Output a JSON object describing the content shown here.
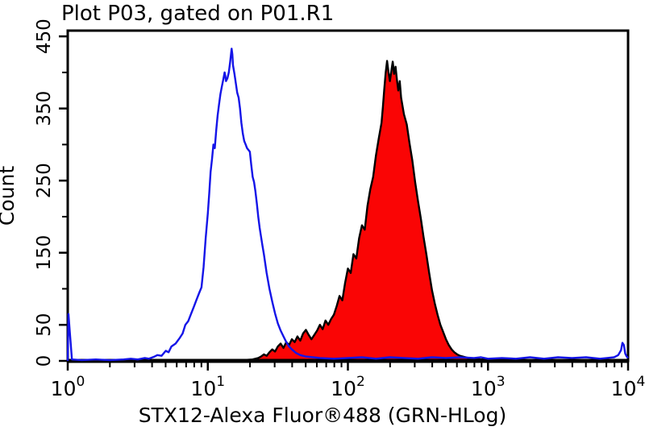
{
  "chart_data": {
    "type": "area",
    "chart_kind": "flow-cytometry-overlay-histogram",
    "title": "Plot P03, gated on P01.R1",
    "xlabel": "STX12-Alexa Fluor®488 (GRN-HLog)",
    "ylabel": "Count",
    "x_scale": "log10",
    "x_range_decades": [
      0,
      4
    ],
    "x_tick_base": "10",
    "x_tick_exponents": [
      0,
      1,
      2,
      3,
      4
    ],
    "ylim": [
      0,
      458
    ],
    "y_ticks_labeled": [
      0,
      50,
      150,
      250,
      350,
      450
    ],
    "y_ticks_minor": [
      100,
      200,
      300,
      400
    ],
    "grid": false,
    "legend_position": "none",
    "axis_color": "#000000",
    "background_color": "#ffffff",
    "series": [
      {
        "name": "control-open-histogram",
        "line_color": "#1414e8",
        "fill": "none",
        "peak": {
          "x": 15,
          "count": 433
        },
        "points_logx_count": [
          [
            0.0,
            0
          ],
          [
            0.005,
            65
          ],
          [
            0.015,
            40
          ],
          [
            0.03,
            2
          ],
          [
            0.1,
            1
          ],
          [
            0.2,
            2
          ],
          [
            0.3,
            1
          ],
          [
            0.4,
            2
          ],
          [
            0.45,
            3
          ],
          [
            0.5,
            2
          ],
          [
            0.55,
            4
          ],
          [
            0.58,
            3
          ],
          [
            0.62,
            6
          ],
          [
            0.64,
            8
          ],
          [
            0.67,
            7
          ],
          [
            0.7,
            14
          ],
          [
            0.72,
            12
          ],
          [
            0.74,
            20
          ],
          [
            0.77,
            24
          ],
          [
            0.8,
            32
          ],
          [
            0.82,
            38
          ],
          [
            0.84,
            50
          ],
          [
            0.86,
            55
          ],
          [
            0.88,
            65
          ],
          [
            0.9,
            75
          ],
          [
            0.92,
            85
          ],
          [
            0.94,
            95
          ],
          [
            0.955,
            102
          ],
          [
            0.97,
            130
          ],
          [
            0.985,
            170
          ],
          [
            1.0,
            205
          ],
          [
            1.01,
            232
          ],
          [
            1.02,
            262
          ],
          [
            1.03,
            280
          ],
          [
            1.04,
            300
          ],
          [
            1.05,
            295
          ],
          [
            1.06,
            320
          ],
          [
            1.07,
            340
          ],
          [
            1.08,
            355
          ],
          [
            1.09,
            370
          ],
          [
            1.1,
            380
          ],
          [
            1.11,
            390
          ],
          [
            1.12,
            400
          ],
          [
            1.125,
            395
          ],
          [
            1.13,
            388
          ],
          [
            1.14,
            392
          ],
          [
            1.15,
            400
          ],
          [
            1.16,
            415
          ],
          [
            1.17,
            433
          ],
          [
            1.175,
            425
          ],
          [
            1.18,
            410
          ],
          [
            1.19,
            398
          ],
          [
            1.2,
            385
          ],
          [
            1.21,
            372
          ],
          [
            1.22,
            365
          ],
          [
            1.23,
            350
          ],
          [
            1.24,
            330
          ],
          [
            1.25,
            315
          ],
          [
            1.26,
            305
          ],
          [
            1.27,
            300
          ],
          [
            1.28,
            295
          ],
          [
            1.3,
            290
          ],
          [
            1.31,
            272
          ],
          [
            1.32,
            255
          ],
          [
            1.33,
            248
          ],
          [
            1.34,
            235
          ],
          [
            1.35,
            218
          ],
          [
            1.36,
            200
          ],
          [
            1.37,
            185
          ],
          [
            1.38,
            172
          ],
          [
            1.39,
            160
          ],
          [
            1.4,
            148
          ],
          [
            1.42,
            122
          ],
          [
            1.44,
            100
          ],
          [
            1.46,
            82
          ],
          [
            1.48,
            66
          ],
          [
            1.5,
            52
          ],
          [
            1.52,
            42
          ],
          [
            1.54,
            34
          ],
          [
            1.56,
            26
          ],
          [
            1.58,
            20
          ],
          [
            1.6,
            16
          ],
          [
            1.63,
            11
          ],
          [
            1.66,
            8
          ],
          [
            1.7,
            6
          ],
          [
            1.75,
            5
          ],
          [
            1.8,
            4
          ],
          [
            1.9,
            3
          ],
          [
            2.0,
            4
          ],
          [
            2.1,
            5
          ],
          [
            2.2,
            3
          ],
          [
            2.3,
            5
          ],
          [
            2.4,
            4
          ],
          [
            2.5,
            3
          ],
          [
            2.6,
            5
          ],
          [
            2.7,
            4
          ],
          [
            2.8,
            5
          ],
          [
            2.9,
            4
          ],
          [
            2.95,
            5
          ],
          [
            3.0,
            3
          ],
          [
            3.1,
            4
          ],
          [
            3.2,
            3
          ],
          [
            3.3,
            5
          ],
          [
            3.4,
            3
          ],
          [
            3.5,
            5
          ],
          [
            3.6,
            4
          ],
          [
            3.7,
            5
          ],
          [
            3.8,
            3
          ],
          [
            3.85,
            4
          ],
          [
            3.9,
            5
          ],
          [
            3.93,
            8
          ],
          [
            3.95,
            15
          ],
          [
            3.96,
            25
          ],
          [
            3.97,
            22
          ],
          [
            3.98,
            10
          ],
          [
            3.99,
            6
          ],
          [
            4.0,
            4
          ]
        ]
      },
      {
        "name": "stx12-stained-filled-histogram",
        "line_color": "#000000",
        "fill": "#fa0505",
        "peak": {
          "x": 195,
          "count": 416
        },
        "points_logx_count": [
          [
            0.0,
            0
          ],
          [
            1.15,
            0
          ],
          [
            1.25,
            1
          ],
          [
            1.32,
            2
          ],
          [
            1.36,
            4
          ],
          [
            1.38,
            6
          ],
          [
            1.4,
            9
          ],
          [
            1.42,
            7
          ],
          [
            1.44,
            12
          ],
          [
            1.46,
            16
          ],
          [
            1.48,
            13
          ],
          [
            1.5,
            20
          ],
          [
            1.52,
            24
          ],
          [
            1.54,
            18
          ],
          [
            1.56,
            26
          ],
          [
            1.58,
            22
          ],
          [
            1.6,
            30
          ],
          [
            1.62,
            26
          ],
          [
            1.64,
            34
          ],
          [
            1.66,
            28
          ],
          [
            1.68,
            38
          ],
          [
            1.7,
            43
          ],
          [
            1.72,
            36
          ],
          [
            1.74,
            30
          ],
          [
            1.76,
            36
          ],
          [
            1.78,
            42
          ],
          [
            1.8,
            50
          ],
          [
            1.82,
            44
          ],
          [
            1.84,
            56
          ],
          [
            1.86,
            50
          ],
          [
            1.88,
            58
          ],
          [
            1.9,
            64
          ],
          [
            1.92,
            76
          ],
          [
            1.94,
            90
          ],
          [
            1.96,
            84
          ],
          [
            1.98,
            108
          ],
          [
            2.0,
            128
          ],
          [
            2.02,
            122
          ],
          [
            2.04,
            148
          ],
          [
            2.06,
            142
          ],
          [
            2.08,
            170
          ],
          [
            2.1,
            188
          ],
          [
            2.12,
            182
          ],
          [
            2.14,
            215
          ],
          [
            2.16,
            238
          ],
          [
            2.18,
            255
          ],
          [
            2.2,
            285
          ],
          [
            2.22,
            308
          ],
          [
            2.24,
            330
          ],
          [
            2.25,
            352
          ],
          [
            2.26,
            378
          ],
          [
            2.27,
            400
          ],
          [
            2.28,
            416
          ],
          [
            2.29,
            400
          ],
          [
            2.3,
            388
          ],
          [
            2.31,
            402
          ],
          [
            2.32,
            415
          ],
          [
            2.33,
            398
          ],
          [
            2.34,
            408
          ],
          [
            2.35,
            390
          ],
          [
            2.36,
            375
          ],
          [
            2.37,
            388
          ],
          [
            2.38,
            365
          ],
          [
            2.4,
            342
          ],
          [
            2.42,
            328
          ],
          [
            2.44,
            302
          ],
          [
            2.46,
            278
          ],
          [
            2.48,
            248
          ],
          [
            2.5,
            222
          ],
          [
            2.52,
            198
          ],
          [
            2.54,
            172
          ],
          [
            2.56,
            148
          ],
          [
            2.58,
            122
          ],
          [
            2.6,
            98
          ],
          [
            2.62,
            80
          ],
          [
            2.64,
            64
          ],
          [
            2.66,
            50
          ],
          [
            2.68,
            40
          ],
          [
            2.7,
            30
          ],
          [
            2.72,
            22
          ],
          [
            2.74,
            16
          ],
          [
            2.76,
            12
          ],
          [
            2.78,
            9
          ],
          [
            2.8,
            7
          ],
          [
            2.84,
            5
          ],
          [
            2.88,
            3
          ],
          [
            2.92,
            2
          ],
          [
            3.0,
            2
          ],
          [
            3.2,
            1
          ],
          [
            3.5,
            1
          ],
          [
            3.8,
            1
          ],
          [
            4.0,
            1
          ]
        ]
      }
    ]
  }
}
